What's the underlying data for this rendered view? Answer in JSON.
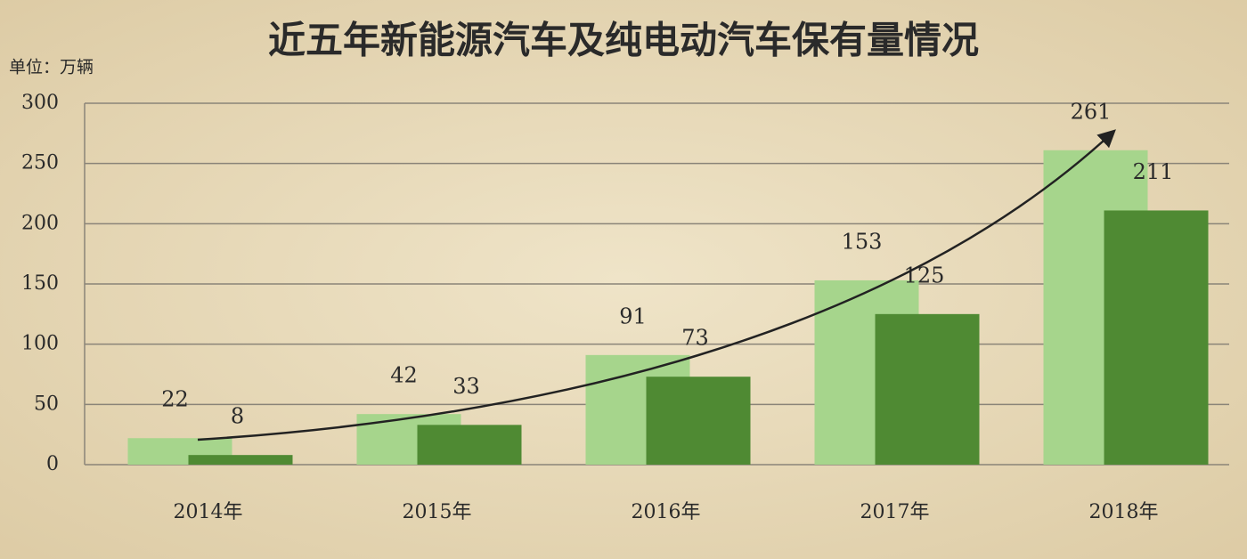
{
  "chart_data": {
    "type": "bar",
    "title": "近五年新能源汽车及纯电动汽车保有量情况",
    "y_unit_label": "单位：万辆",
    "categories": [
      "2014年",
      "2015年",
      "2016年",
      "2017年",
      "2018年"
    ],
    "series": [
      {
        "color": "#a6d58c",
        "values": [
          22,
          42,
          91,
          153,
          261
        ]
      },
      {
        "color": "#4f8a33",
        "values": [
          8,
          33,
          73,
          125,
          211
        ]
      }
    ],
    "ylim": [
      0,
      300
    ],
    "yticks": [
      0,
      50,
      100,
      150,
      200,
      250,
      300
    ],
    "grid": true
  }
}
